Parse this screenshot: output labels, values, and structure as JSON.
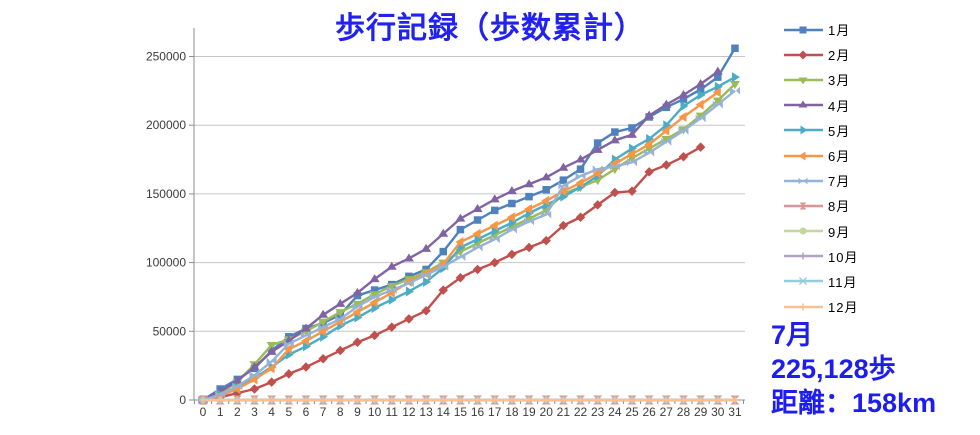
{
  "title": "歩行記録（歩数累計）",
  "summary": {
    "month": "7月",
    "steps": "225,128歩",
    "distance": "距離：158km",
    "text_color": "#1d1df0"
  },
  "chart_data": {
    "type": "line",
    "title": "歩行記録（歩数累計）",
    "xlabel": "",
    "ylabel": "",
    "x_tick_labels": [
      "0",
      "1",
      "2",
      "3",
      "4",
      "5",
      "6",
      "7",
      "8",
      "9",
      "10",
      "11",
      "12",
      "13",
      "14",
      "15",
      "16",
      "17",
      "18",
      "19",
      "20",
      "21",
      "22",
      "23",
      "24",
      "25",
      "26",
      "27",
      "28",
      "29",
      "30",
      "31"
    ],
    "y_tick_labels": [
      "0",
      "50000",
      "100000",
      "150000",
      "200000",
      "250000"
    ],
    "y_ticks": [
      0,
      50000,
      100000,
      150000,
      200000,
      250000
    ],
    "ylim": [
      0,
      270000
    ],
    "grid": true,
    "legend_position": "right",
    "series": [
      {
        "name": "1月",
        "color": "#4F81BD",
        "marker": "square",
        "values": [
          0,
          8000,
          15000,
          23000,
          36000,
          46000,
          52000,
          56000,
          62000,
          76000,
          80000,
          84000,
          90000,
          95000,
          108000,
          124000,
          131000,
          138000,
          143000,
          148000,
          153000,
          160000,
          168000,
          187000,
          195000,
          198000,
          206000,
          213000,
          219000,
          226000,
          235000,
          256000
        ]
      },
      {
        "name": "2月",
        "color": "#C0504D",
        "marker": "diamond",
        "values": [
          0,
          2000,
          5000,
          8000,
          13000,
          19000,
          24000,
          30000,
          36000,
          42000,
          47000,
          53000,
          59000,
          65000,
          80000,
          89000,
          95000,
          100000,
          106000,
          111000,
          116000,
          127000,
          133000,
          142000,
          151000,
          152000,
          166000,
          171000,
          177000,
          184000
        ]
      },
      {
        "name": "3月",
        "color": "#9BBB59",
        "marker": "tri-down",
        "values": [
          0,
          5000,
          13000,
          26000,
          40000,
          44000,
          50000,
          57000,
          64000,
          70000,
          77000,
          83000,
          88000,
          93000,
          100000,
          108000,
          114000,
          120000,
          126000,
          132000,
          138000,
          150000,
          155000,
          160000,
          168000,
          176000,
          183000,
          190000,
          197000,
          207000,
          218000,
          230000
        ]
      },
      {
        "name": "4月",
        "color": "#8064A2",
        "marker": "tri-up",
        "values": [
          0,
          6000,
          14000,
          24000,
          35000,
          43000,
          52000,
          62000,
          70000,
          78000,
          88000,
          97000,
          103000,
          110000,
          121000,
          132000,
          139000,
          146000,
          152000,
          157000,
          162000,
          169000,
          175000,
          182000,
          189000,
          193000,
          207000,
          215000,
          222000,
          230000,
          239000
        ]
      },
      {
        "name": "5月",
        "color": "#4BACC6",
        "marker": "tri-right",
        "values": [
          0,
          4000,
          9000,
          16000,
          24000,
          33000,
          39000,
          46000,
          54000,
          60000,
          67000,
          73000,
          79000,
          86000,
          96000,
          111000,
          117000,
          123000,
          129000,
          136000,
          142000,
          148000,
          155000,
          163000,
          175000,
          183000,
          190000,
          200000,
          214000,
          222000,
          228000,
          235000
        ]
      },
      {
        "name": "6月",
        "color": "#F79646",
        "marker": "tri-left",
        "values": [
          0,
          3000,
          8000,
          15000,
          23000,
          37000,
          43000,
          50000,
          57000,
          64000,
          71000,
          78000,
          86000,
          92000,
          99000,
          115000,
          121000,
          127000,
          133000,
          139000,
          145000,
          152000,
          158000,
          165000,
          172000,
          179000,
          186000,
          196000,
          206000,
          215000,
          224000
        ]
      },
      {
        "name": "7月",
        "color": "#95B3D7",
        "marker": "bowtie-h",
        "values": [
          0,
          4000,
          10000,
          18000,
          28000,
          41000,
          47000,
          53000,
          59000,
          68000,
          75000,
          80000,
          85000,
          91000,
          97000,
          104000,
          111000,
          117000,
          124000,
          130000,
          135000,
          156000,
          163000,
          168000,
          170000,
          173000,
          180000,
          188000,
          196000,
          205000,
          215000,
          225128
        ]
      },
      {
        "name": "8月",
        "color": "#D99694",
        "marker": "bowtie-v",
        "values": [
          0,
          0,
          0,
          0,
          0,
          0,
          0,
          0,
          0,
          0,
          0,
          0,
          0,
          0,
          0,
          0,
          0,
          0,
          0,
          0,
          0,
          0,
          0,
          0,
          0,
          0,
          0,
          0,
          0,
          0,
          0,
          0
        ]
      },
      {
        "name": "9月",
        "color": "#C3D69B",
        "marker": "circle",
        "values": [
          0,
          0,
          0,
          0,
          0,
          0,
          0,
          0,
          0,
          0,
          0,
          0,
          0,
          0,
          0,
          0,
          0,
          0,
          0,
          0,
          0,
          0,
          0,
          0,
          0,
          0,
          0,
          0,
          0,
          0,
          0
        ]
      },
      {
        "name": "10月",
        "color": "#B3A2C7",
        "marker": "plus",
        "values": [
          0,
          0,
          0,
          0,
          0,
          0,
          0,
          0,
          0,
          0,
          0,
          0,
          0,
          0,
          0,
          0,
          0,
          0,
          0,
          0,
          0,
          0,
          0,
          0,
          0,
          0,
          0,
          0,
          0,
          0,
          0,
          0
        ]
      },
      {
        "name": "11月",
        "color": "#93CDDD",
        "marker": "x",
        "values": [
          0,
          0,
          0,
          0,
          0,
          0,
          0,
          0,
          0,
          0,
          0,
          0,
          0,
          0,
          0,
          0,
          0,
          0,
          0,
          0,
          0,
          0,
          0,
          0,
          0,
          0,
          0,
          0,
          0,
          0,
          0
        ]
      },
      {
        "name": "12月",
        "color": "#FAC090",
        "marker": "plus",
        "values": [
          0,
          0,
          0,
          0,
          0,
          0,
          0,
          0,
          0,
          0,
          0,
          0,
          0,
          0,
          0,
          0,
          0,
          0,
          0,
          0,
          0,
          0,
          0,
          0,
          0,
          0,
          0,
          0,
          0,
          0,
          0,
          0
        ]
      }
    ]
  }
}
